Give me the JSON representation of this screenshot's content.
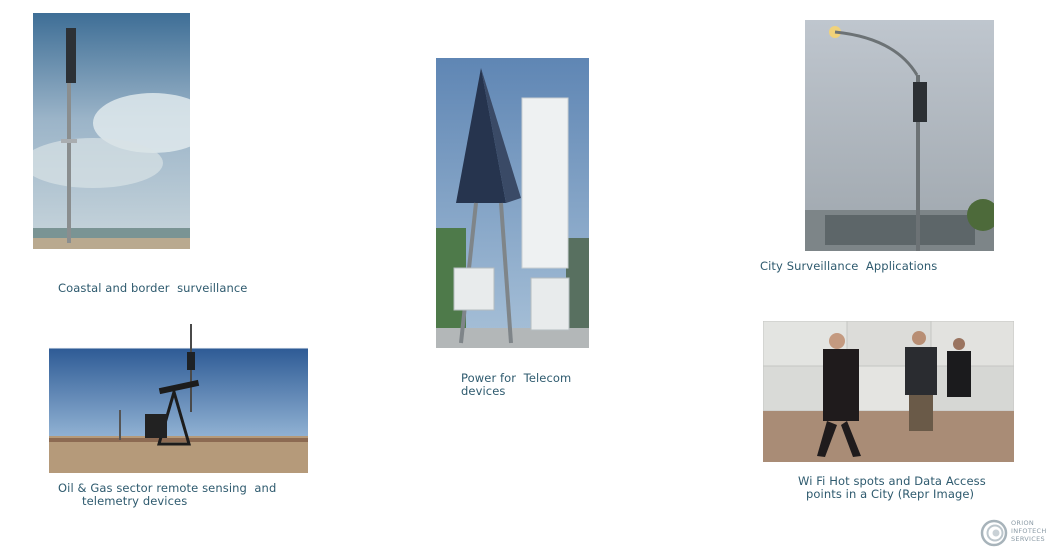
{
  "captions": {
    "coastal": "Coastal and border  surveillance",
    "telecom_line1": "Power for  Telecom",
    "telecom_line2": "devices",
    "city": "City Surveillance  Applications",
    "oilgas_line1": "Oil & Gas sector remote sensing  and",
    "oilgas_line2": "telemetry devices",
    "wifi_line1": "Wi Fi Hot spots and Data Access",
    "wifi_line2": "points in a City (Repr Image)"
  },
  "logo": {
    "line1": "ORION",
    "line2": "INFOTECH",
    "line3": "SERVICES",
    "icon": "spiral-logo-icon"
  },
  "colors": {
    "caption": "#2e5a6e",
    "sky": "#6b8cb0",
    "logo_gray": "#8a9aa5"
  }
}
